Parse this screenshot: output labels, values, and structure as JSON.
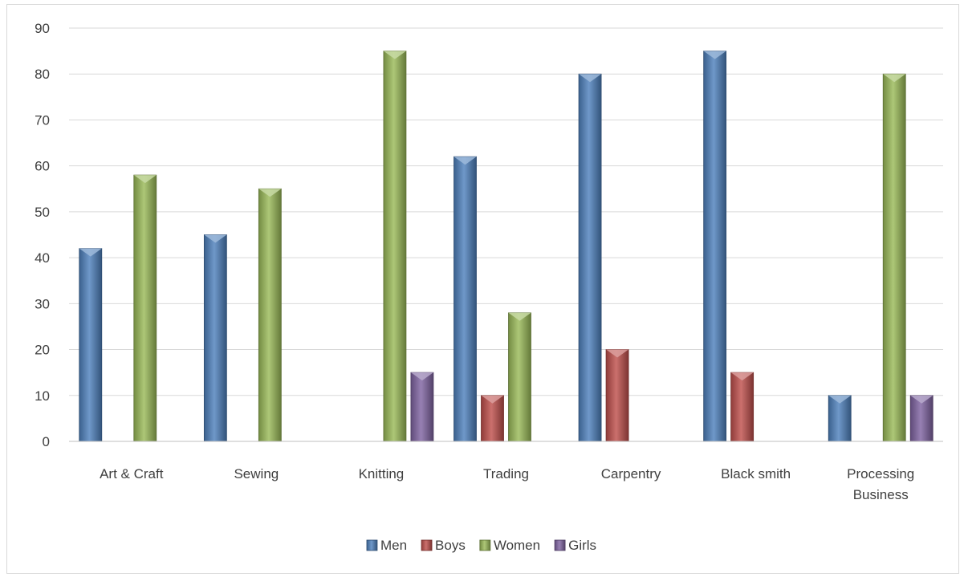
{
  "chart_data": {
    "type": "bar",
    "title": "",
    "xlabel": "",
    "ylabel": "",
    "ylim": [
      0,
      90
    ],
    "ytick_step": 10,
    "grid": true,
    "legend_position": "bottom",
    "categories": [
      [
        "Art & Craft"
      ],
      [
        "Sewing"
      ],
      [
        "Knitting"
      ],
      [
        "Trading"
      ],
      [
        "Carpentry"
      ],
      [
        "Black smith"
      ],
      [
        "Processing",
        "Business"
      ]
    ],
    "series": [
      {
        "name": "Men",
        "color": "#4f81bd",
        "values": [
          42,
          45,
          0,
          62,
          80,
          85,
          10
        ]
      },
      {
        "name": "Boys",
        "color": "#c0504d",
        "values": [
          0,
          0,
          0,
          10,
          20,
          15,
          0
        ]
      },
      {
        "name": "Women",
        "color": "#9bbb59",
        "values": [
          58,
          55,
          85,
          28,
          0,
          0,
          80
        ]
      },
      {
        "name": "Girls",
        "color": "#8064a2",
        "values": [
          0,
          0,
          15,
          0,
          0,
          0,
          10
        ]
      }
    ]
  }
}
